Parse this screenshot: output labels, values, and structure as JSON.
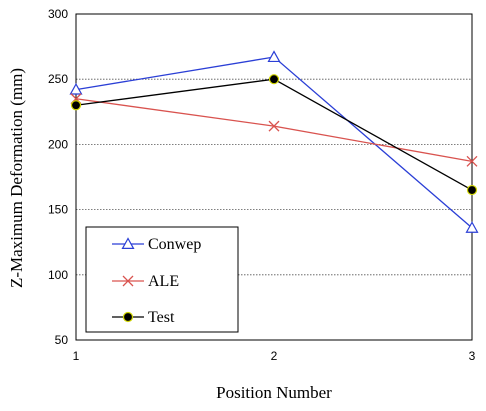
{
  "chart_data": {
    "type": "line",
    "x": [
      1,
      2,
      3
    ],
    "xlabel": "Position Number",
    "ylabel": "Z-Maximum Deformation (mm)",
    "xlim": [
      1,
      3
    ],
    "ylim": [
      50,
      300
    ],
    "x_ticks": [
      "1",
      "2",
      "3"
    ],
    "y_ticks": [
      "50",
      "100",
      "150",
      "200",
      "250",
      "300"
    ],
    "grid": "horizontal dotted",
    "legend_position": "bottom-left",
    "series": [
      {
        "name": "Conwep",
        "values": [
          242,
          267,
          136
        ],
        "color": "#2b3fd6",
        "marker": "triangle"
      },
      {
        "name": "ALE",
        "values": [
          235,
          214,
          187
        ],
        "color": "#d9534f",
        "marker": "x"
      },
      {
        "name": "Test",
        "values": [
          230,
          250,
          165
        ],
        "color": "#000000",
        "marker": "circle"
      }
    ]
  }
}
